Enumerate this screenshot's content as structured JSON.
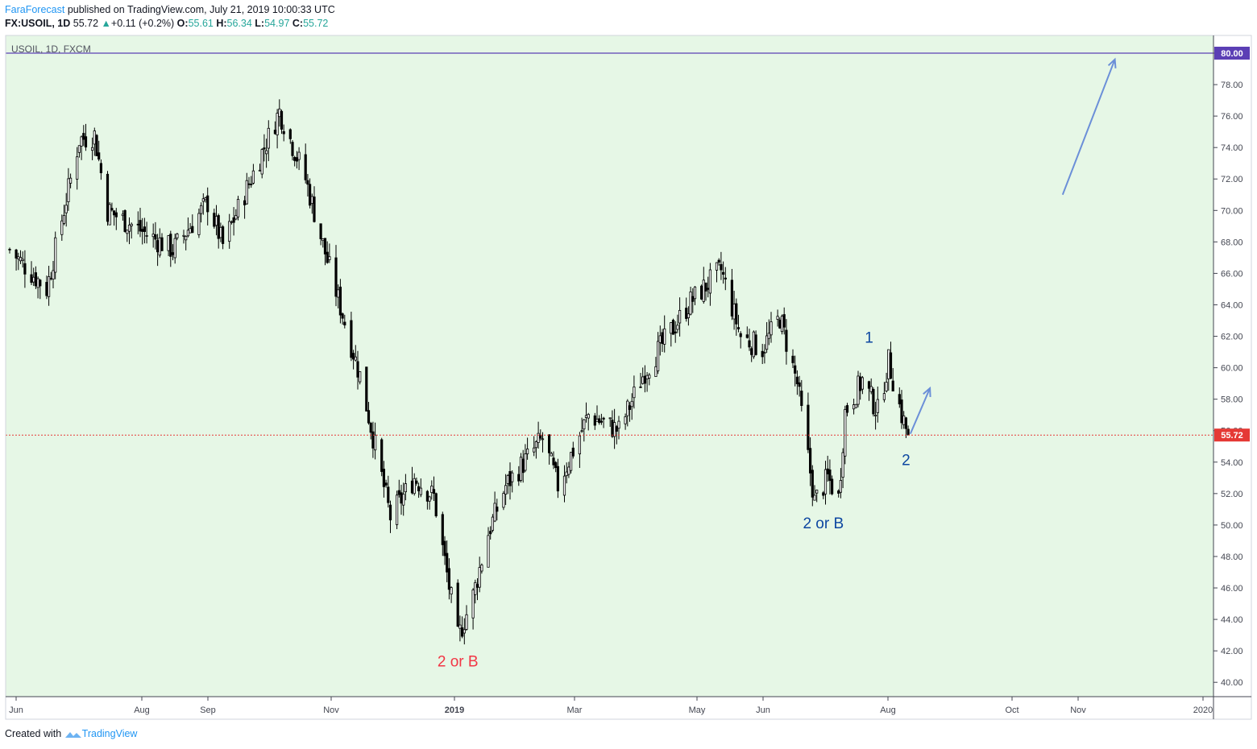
{
  "header": {
    "author": "FaraForecast",
    "published_text": " published on TradingView.com, July 21, 2019 10:00:33 UTC",
    "symbol_line": "FX:USOIL, 1D",
    "last": "55.72",
    "up_arrow": "▲",
    "change": "+0.11 (+0.2%)",
    "o_label": "O:",
    "o": "55.61",
    "h_label": "H:",
    "h": "56.34",
    "l_label": "L:",
    "l": "54.97",
    "c_label": "C:",
    "c": "55.72"
  },
  "chart_data": {
    "type": "candlestick",
    "title": "USOIL, 1D, FXCM",
    "ylim": [
      39,
      81
    ],
    "y_ticks": [
      "40.00",
      "42.00",
      "44.00",
      "46.00",
      "48.00",
      "50.00",
      "52.00",
      "54.00",
      "56.00",
      "58.00",
      "60.00",
      "62.00",
      "64.00",
      "66.00",
      "68.00",
      "70.00",
      "72.00",
      "74.00",
      "76.00",
      "78.00",
      "80.00"
    ],
    "x_ticks": [
      "Jun",
      "Aug",
      "Sep",
      "Nov",
      "2019",
      "Mar",
      "May",
      "Jun",
      "Aug",
      "Oct",
      "Nov",
      "2020"
    ],
    "current_price": 55.72,
    "current_price_label": "55.72",
    "target_level": 80.0,
    "target_label": "80.00",
    "anchors": [
      [
        "2018-06-01",
        67.5
      ],
      [
        "2018-06-18",
        65.0
      ],
      [
        "2018-07-03",
        74.5
      ],
      [
        "2018-07-10",
        74.8
      ],
      [
        "2018-07-16",
        70.0
      ],
      [
        "2018-08-15",
        67.5
      ],
      [
        "2018-08-31",
        70.5
      ],
      [
        "2018-09-07",
        67.8
      ],
      [
        "2018-10-03",
        76.3
      ],
      [
        "2018-10-15",
        72.0
      ],
      [
        "2018-10-25",
        66.8
      ],
      [
        "2018-11-09",
        59.5
      ],
      [
        "2018-11-23",
        50.5
      ],
      [
        "2018-12-04",
        53.0
      ],
      [
        "2018-12-13",
        51.8
      ],
      [
        "2018-12-24",
        42.8
      ],
      [
        "2018-12-31",
        45.5
      ],
      [
        "2019-01-07",
        49.5
      ],
      [
        "2019-01-15",
        52.5
      ],
      [
        "2019-02-01",
        55.5
      ],
      [
        "2019-02-08",
        52.5
      ],
      [
        "2019-02-22",
        57.0
      ],
      [
        "2019-03-08",
        56.0
      ],
      [
        "2019-03-20",
        59.8
      ],
      [
        "2019-04-10",
        64.2
      ],
      [
        "2019-04-24",
        66.2
      ],
      [
        "2019-05-03",
        62.0
      ],
      [
        "2019-05-13",
        61.2
      ],
      [
        "2019-05-21",
        63.2
      ],
      [
        "2019-05-29",
        59.0
      ],
      [
        "2019-06-06",
        51.5
      ],
      [
        "2019-06-12",
        53.0
      ],
      [
        "2019-06-17",
        51.7
      ],
      [
        "2019-06-20",
        57.2
      ],
      [
        "2019-06-28",
        59.2
      ],
      [
        "2019-07-05",
        57.2
      ],
      [
        "2019-07-10",
        60.4
      ],
      [
        "2019-07-16",
        57.0
      ],
      [
        "2019-07-19",
        55.72
      ]
    ],
    "annotations": [
      {
        "text": "2 or B",
        "color": "#f23645",
        "date": "2018-12-24",
        "price": 41.0
      },
      {
        "text": "2 or B",
        "color": "#0d47a1",
        "date": "2019-06-10",
        "price": 49.8
      },
      {
        "text": "1",
        "color": "#0d47a1",
        "date": "2019-07-01",
        "price": 61.6
      },
      {
        "text": "2",
        "color": "#0d47a1",
        "date": "2019-07-18",
        "price": 53.8
      }
    ],
    "arrows": [
      {
        "from": [
          "2019-09-28",
          71.0
        ],
        "to": [
          "2019-10-22",
          79.6
        ]
      },
      {
        "from": [
          "2019-07-20",
          55.8
        ],
        "to": [
          "2019-07-29",
          58.7
        ]
      }
    ]
  },
  "footer": {
    "created_with": "Created with",
    "brand": "TradingView"
  },
  "colors": {
    "plot_bg": "#e6f7e6",
    "candle": "#000000",
    "target_line": "#5b3fb5",
    "price_line": "#e53935",
    "arrow": "#6b8fd8",
    "up": "#26a69a"
  }
}
